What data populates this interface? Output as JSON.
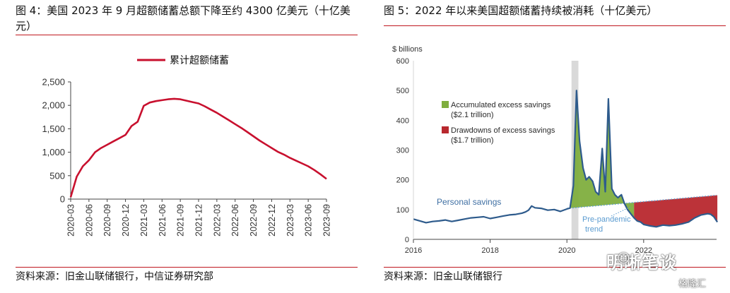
{
  "left": {
    "title": "图 4：美国 2023 年 9 月超额储蓄总额下降至约 4300 亿美元（十亿美元）",
    "source": "资料来源：旧金山联储银行，中信证券研究部"
  },
  "right": {
    "title": "图 5：2022 年以来美国超额储蓄持续被消耗（十亿美元）",
    "source": "资料来源：旧金山联储银行"
  },
  "watermark": {
    "text": "明晰笔谈",
    "brand": "格隆汇"
  },
  "chart_data": [
    {
      "type": "line",
      "title": "",
      "xlabel": "",
      "ylabel": "",
      "ylim": [
        0,
        2500
      ],
      "yticks": [
        "0",
        "500",
        "1,000",
        "1,500",
        "2,000",
        "2,500"
      ],
      "xticks": [
        "2020-03",
        "2020-06",
        "2020-09",
        "2020-12",
        "2021-03",
        "2021-06",
        "2021-09",
        "2021-12",
        "2022-03",
        "2022-06",
        "2022-09",
        "2022-12",
        "2023-03",
        "2023-06",
        "2023-09"
      ],
      "legend": "top-center",
      "grid": false,
      "series": [
        {
          "name": "累计超额储蓄",
          "color": "#c8102e",
          "x": [
            "2020-03",
            "2020-04",
            "2020-05",
            "2020-06",
            "2020-07",
            "2020-08",
            "2020-09",
            "2020-10",
            "2020-11",
            "2020-12",
            "2021-01",
            "2021-02",
            "2021-03",
            "2021-04",
            "2021-05",
            "2021-06",
            "2021-07",
            "2021-08",
            "2021-09",
            "2021-10",
            "2021-11",
            "2021-12",
            "2022-01",
            "2022-02",
            "2022-03",
            "2022-04",
            "2022-05",
            "2022-06",
            "2022-07",
            "2022-08",
            "2022-09",
            "2022-10",
            "2022-11",
            "2022-12",
            "2023-01",
            "2023-02",
            "2023-03",
            "2023-04",
            "2023-05",
            "2023-06",
            "2023-07",
            "2023-08",
            "2023-09"
          ],
          "values": [
            40,
            480,
            700,
            830,
            1000,
            1090,
            1160,
            1230,
            1300,
            1370,
            1560,
            1650,
            1990,
            2060,
            2090,
            2110,
            2130,
            2140,
            2130,
            2100,
            2070,
            2040,
            1980,
            1910,
            1840,
            1760,
            1680,
            1600,
            1520,
            1430,
            1340,
            1250,
            1170,
            1090,
            1010,
            950,
            880,
            820,
            760,
            700,
            620,
            530,
            430
          ]
        }
      ]
    },
    {
      "type": "area",
      "title": "",
      "ylabel": "$ billions",
      "ylim": [
        0,
        600
      ],
      "yticks": [
        "0",
        "100",
        "200",
        "300",
        "400",
        "500",
        "600"
      ],
      "xlim": [
        2016,
        2023.9
      ],
      "xticks": [
        "2016",
        "2018",
        "2020",
        "2022"
      ],
      "grid": false,
      "shaded_band": [
        2020.12,
        2020.3
      ],
      "annotations": [
        "Accumulated excess savings",
        "($2.1 trillion)",
        "Drawdowns of excess savings",
        "($1.7 trillion)",
        "Personal savings",
        "Pre-pandemic",
        "trend"
      ],
      "series": [
        {
          "name": "Personal savings",
          "color": "#2e5b8c",
          "x": [
            2016.0,
            2016.17,
            2016.33,
            2016.5,
            2016.67,
            2016.83,
            2017.0,
            2017.17,
            2017.33,
            2017.5,
            2017.67,
            2017.83,
            2018.0,
            2018.17,
            2018.33,
            2018.5,
            2018.67,
            2018.83,
            2018.92,
            2019.0,
            2019.08,
            2019.17,
            2019.33,
            2019.5,
            2019.67,
            2019.83,
            2020.0,
            2020.08,
            2020.17,
            2020.25,
            2020.33,
            2020.42,
            2020.5,
            2020.58,
            2020.67,
            2020.75,
            2020.83,
            2020.92,
            2021.0,
            2021.08,
            2021.17,
            2021.25,
            2021.33,
            2021.42,
            2021.5,
            2021.58,
            2021.67,
            2021.75,
            2021.83,
            2021.92,
            2022.0,
            2022.17,
            2022.33,
            2022.5,
            2022.67,
            2022.83,
            2023.0,
            2023.17,
            2023.33,
            2023.5,
            2023.67,
            2023.75,
            2023.83,
            2023.92
          ],
          "values": [
            68,
            62,
            56,
            60,
            62,
            65,
            60,
            64,
            68,
            72,
            74,
            76,
            70,
            74,
            78,
            82,
            84,
            88,
            92,
            98,
            112,
            106,
            104,
            98,
            100,
            94,
            102,
            105,
            180,
            500,
            330,
            240,
            200,
            210,
            195,
            160,
            150,
            305,
            160,
            472,
            170,
            150,
            140,
            150,
            120,
            100,
            85,
            72,
            62,
            58,
            50,
            45,
            42,
            48,
            46,
            48,
            52,
            58,
            72,
            82,
            86,
            84,
            76,
            58
          ]
        },
        {
          "name": "Pre-pandemic trend",
          "color": "#5a9bd0",
          "x": [
            2020.0,
            2023.9
          ],
          "values": [
            104,
            148
          ]
        },
        {
          "name": "Accumulated excess savings",
          "color": "#7fae3e",
          "legend_label": "Accumulated excess savings"
        },
        {
          "name": "Drawdowns of excess savings",
          "color": "#b8282e",
          "legend_label": "Drawdowns of excess savings"
        }
      ]
    }
  ]
}
